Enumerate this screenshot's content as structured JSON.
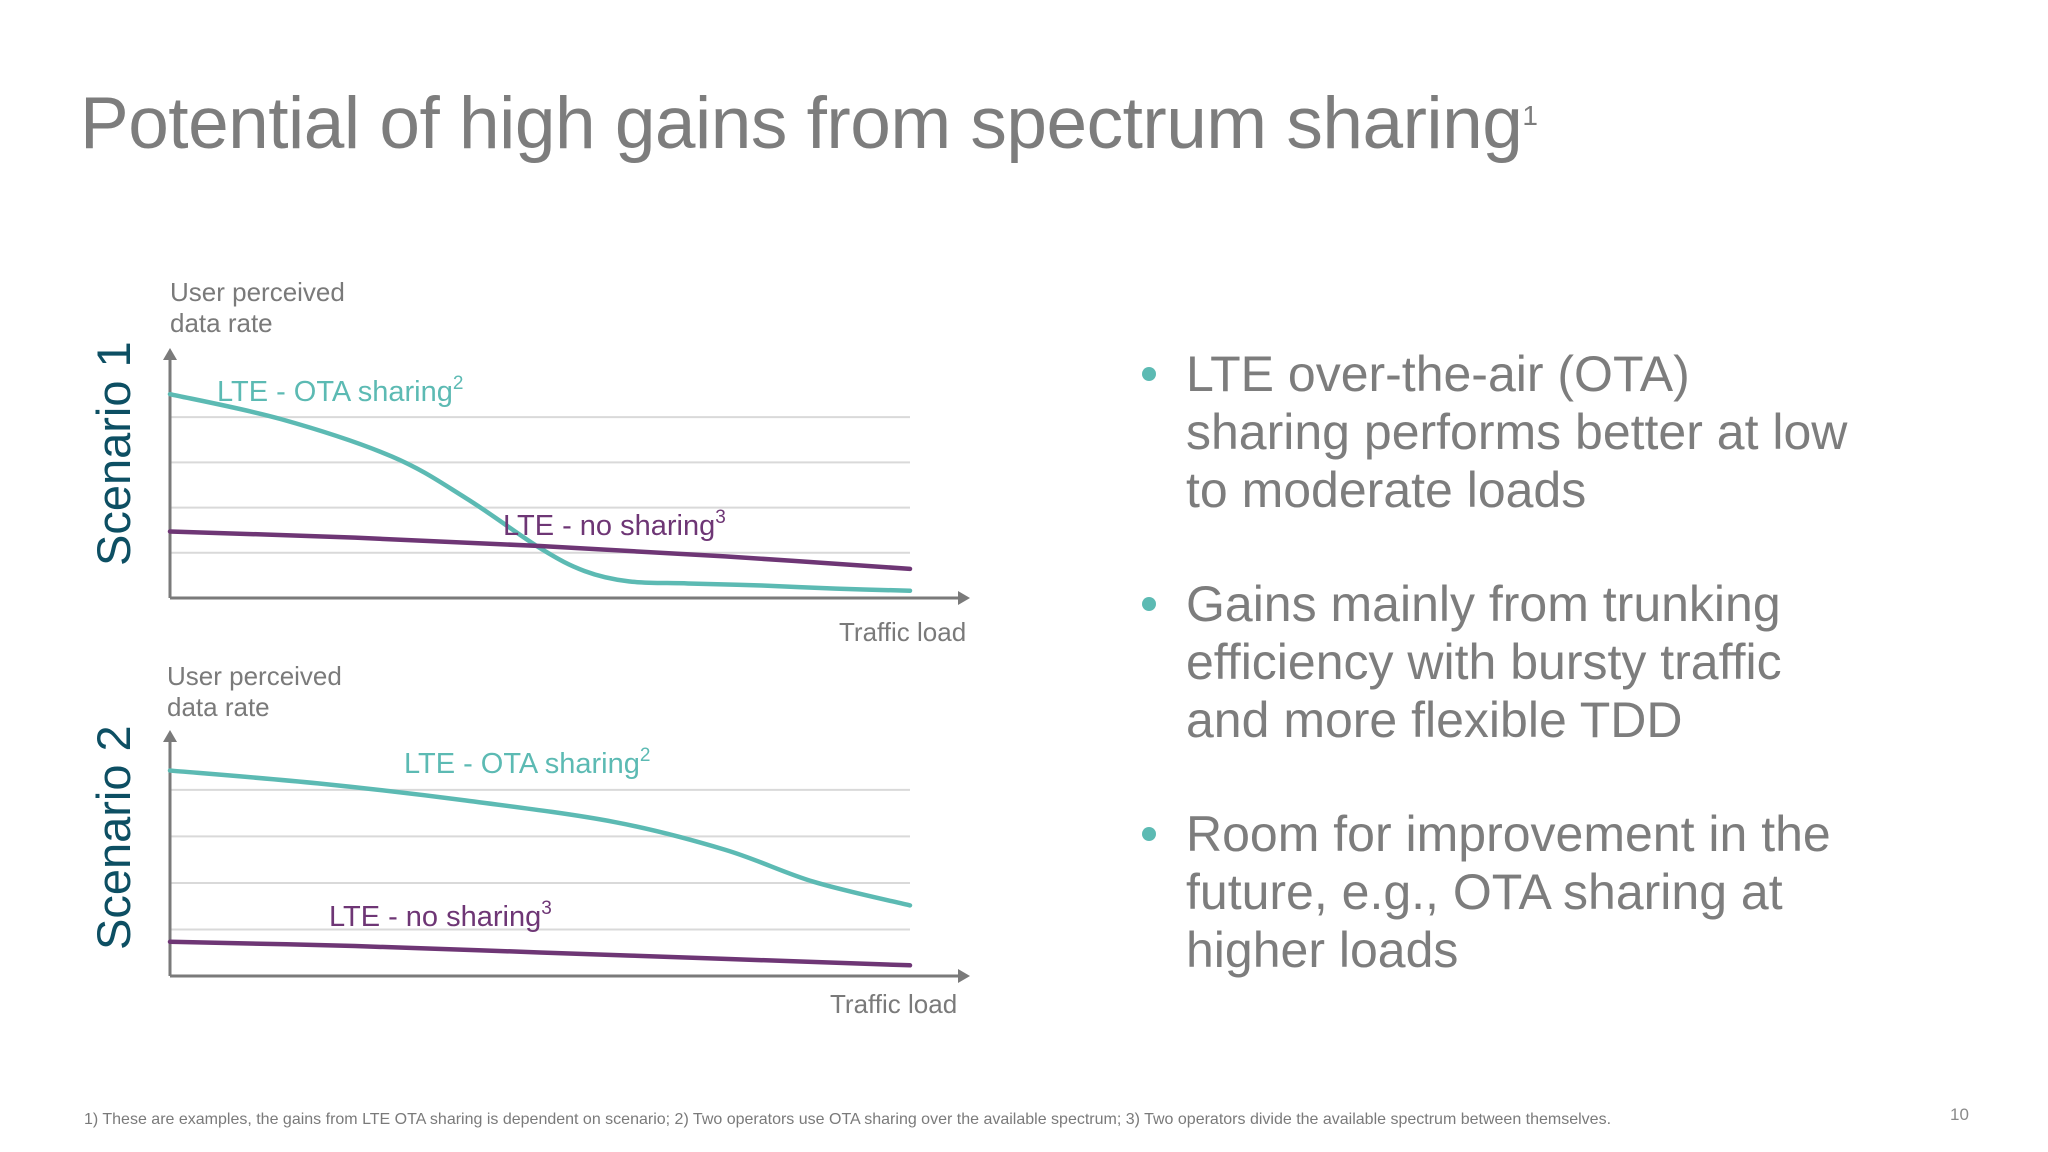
{
  "slide": {
    "title": "Potential of high gains from spectrum sharing",
    "title_sup": "1",
    "page_number": "10",
    "footnote": "1) These are examples, the gains from LTE OTA sharing is dependent on scenario; 2) Two operators use OTA sharing over the available spectrum; 3) Two operators divide the available spectrum between themselves."
  },
  "bullets": [
    "LTE over-the-air (OTA) sharing performs better at low to moderate loads",
    "Gains mainly from trunking efficiency with bursty traffic and more flexible TDD",
    "Room for improvement in the future, e.g., OTA sharing at higher loads"
  ],
  "colors": {
    "teal": "#5cbab3",
    "purple": "#6e3675",
    "axis": "#7a7a7a",
    "grid": "#d9d9d9",
    "scenario": "#0d4f63"
  },
  "chart_data": [
    {
      "type": "line",
      "scenario_label": "Scenario 1",
      "ylabel": "User perceived data rate",
      "xlabel": "Traffic load",
      "xlim": [
        0,
        10
      ],
      "ylim": [
        0,
        10
      ],
      "grid": true,
      "series": [
        {
          "name": "LTE - OTA sharing",
          "name_sup": "2",
          "color": "teal",
          "x": [
            0,
            1.5,
            3,
            4,
            5,
            5.6,
            6.2,
            7,
            8,
            9,
            10
          ],
          "y": [
            9.8,
            8.6,
            6.8,
            4.8,
            2.4,
            1.3,
            0.8,
            0.7,
            0.6,
            0.45,
            0.35
          ]
        },
        {
          "name": "LTE - no sharing",
          "name_sup": "3",
          "color": "purple",
          "x": [
            0,
            2.5,
            5,
            7.5,
            10
          ],
          "y": [
            3.2,
            2.9,
            2.5,
            2.0,
            1.4
          ]
        }
      ]
    },
    {
      "type": "line",
      "scenario_label": "Scenario 2",
      "ylabel": "User perceived data rate",
      "xlabel": "Traffic load",
      "xlim": [
        0,
        10
      ],
      "ylim": [
        0,
        10
      ],
      "grid": true,
      "series": [
        {
          "name": "LTE - OTA sharing",
          "name_sup": "2",
          "color": "teal",
          "x": [
            0,
            2,
            4,
            6,
            7.5,
            8.7,
            10
          ],
          "y": [
            9.6,
            9.0,
            8.2,
            7.2,
            5.9,
            4.4,
            3.3
          ]
        },
        {
          "name": "LTE - no sharing",
          "name_sup": "3",
          "color": "purple",
          "x": [
            0,
            2.5,
            5,
            7.5,
            10
          ],
          "y": [
            1.6,
            1.4,
            1.1,
            0.8,
            0.5
          ]
        }
      ]
    }
  ]
}
